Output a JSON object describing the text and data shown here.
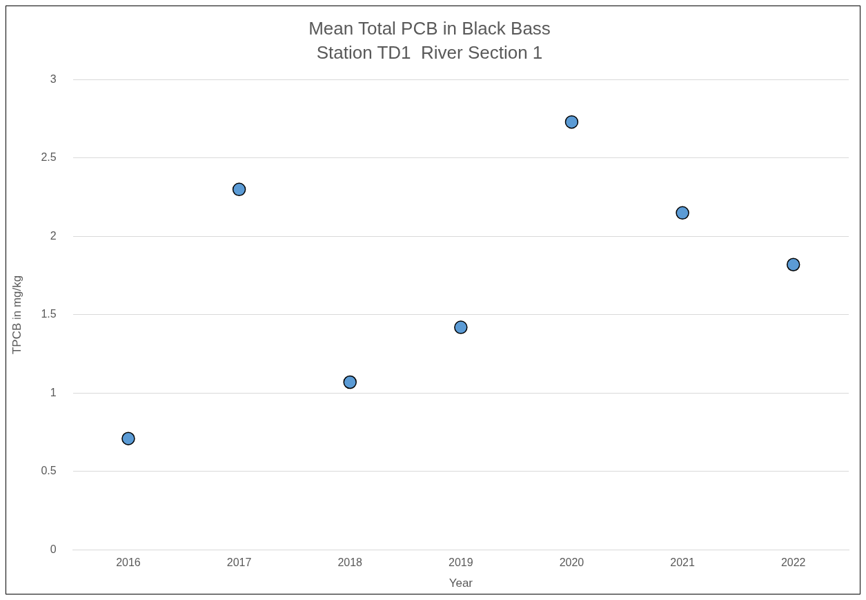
{
  "chart_data": {
    "type": "scatter",
    "title": "Mean Total PCB in Black Bass",
    "subtitle": "Station TD1  River Section 1",
    "xlabel": "Year",
    "ylabel": "TPCB in mg/kg",
    "categories": [
      "2016",
      "2017",
      "2018",
      "2019",
      "2020",
      "2021",
      "2022"
    ],
    "series": [
      {
        "color": "#5b9bd5",
        "values": [
          0.71,
          2.3,
          1.07,
          1.42,
          2.73,
          2.15,
          1.82
        ]
      }
    ],
    "ylim": [
      0,
      3
    ],
    "yticks": [
      0,
      0.5,
      1,
      1.5,
      2,
      2.5,
      3
    ],
    "grid": "y",
    "legend": false,
    "marker": "circle"
  }
}
